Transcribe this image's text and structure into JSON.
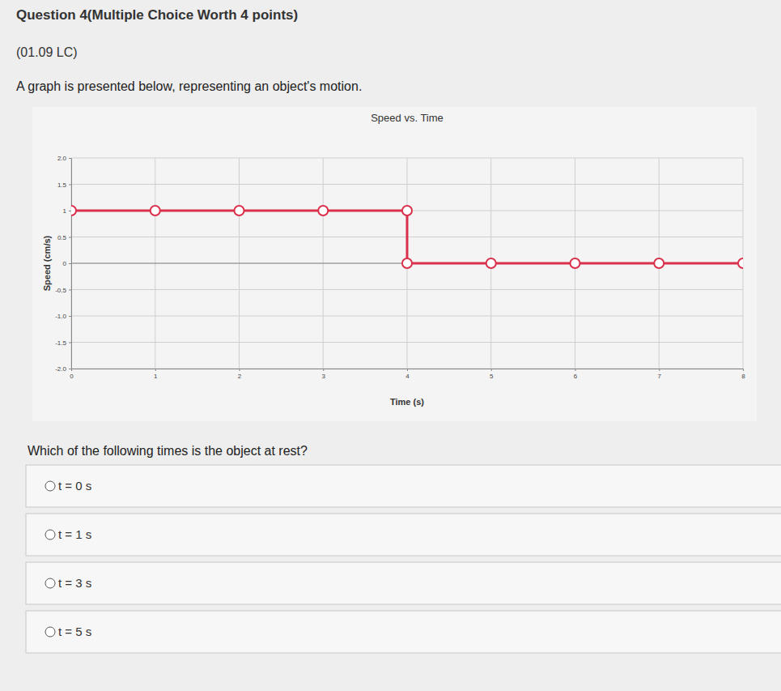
{
  "page": {
    "header": "Question 4(Multiple Choice Worth 4 points)",
    "code": "(01.09 LC)",
    "prompt": "A graph is presented below, representing an object's motion.",
    "question": "Which of the following times is the object at rest?",
    "options": [
      "t = 0 s",
      "t = 1 s",
      "t = 3 s",
      "t = 5 s"
    ]
  },
  "chart_data": {
    "type": "line",
    "title": "Speed vs. Time",
    "x_label": "Time (s)",
    "y_label": "Speed (cm/s)",
    "x": [
      0,
      1,
      2,
      3,
      4,
      4,
      5,
      6,
      7,
      8
    ],
    "values": [
      1,
      1,
      1,
      1,
      1,
      0,
      0,
      0,
      0,
      0
    ],
    "color": "#d9314c",
    "marker": "circle",
    "xlim": [
      0,
      8
    ],
    "xticks": [
      0,
      1,
      2,
      3,
      4,
      5,
      6,
      7,
      8
    ],
    "ylim": [
      -2,
      2
    ],
    "yticks": [
      {
        "value": -2,
        "label": "-2.0"
      },
      {
        "value": -1.5,
        "label": "-1.5"
      },
      {
        "value": -1,
        "label": "-1.0"
      },
      -0.5,
      0,
      0.5,
      1,
      1.5,
      {
        "value": 2,
        "label": "2.0"
      }
    ],
    "grid": true
  }
}
